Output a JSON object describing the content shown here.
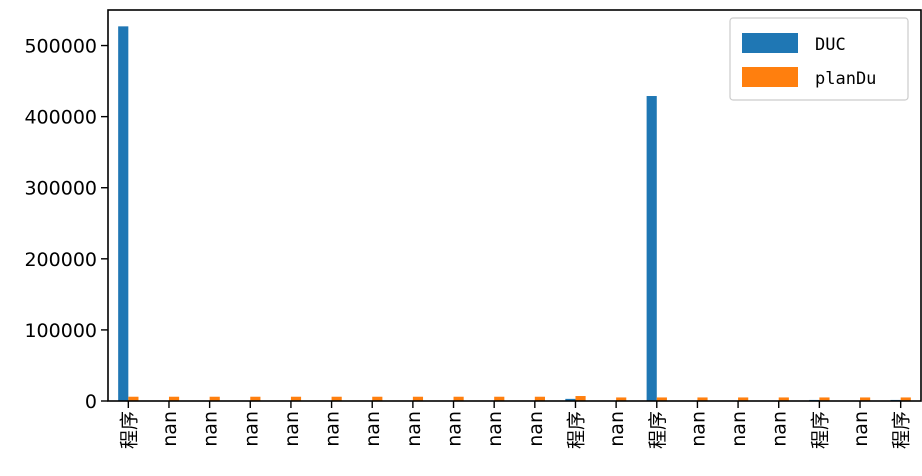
{
  "chart_data": {
    "type": "bar",
    "title": "",
    "xlabel": "",
    "ylabel": "",
    "ylim": [
      0,
      550000
    ],
    "yticks": [
      0,
      100000,
      200000,
      300000,
      400000,
      500000
    ],
    "ytick_labels": [
      "0",
      "100000",
      "200000",
      "300000",
      "400000",
      "500000"
    ],
    "categories": [
      "程序",
      "nan",
      "nan",
      "nan",
      "nan",
      "nan",
      "nan",
      "nan",
      "nan",
      "nan",
      "nan",
      "程序",
      "nan",
      "程序",
      "nan",
      "nan",
      "nan",
      "程序",
      "nan",
      "程序"
    ],
    "series": [
      {
        "name": "DUC",
        "color": "#1f77b4",
        "values": [
          527000,
          0,
          0,
          0,
          0,
          0,
          0,
          0,
          0,
          0,
          0,
          3000,
          0,
          429000,
          0,
          0,
          0,
          1500,
          0,
          1500
        ]
      },
      {
        "name": "planDu",
        "color": "#ff7f0e",
        "values": [
          6000,
          6000,
          6000,
          6000,
          6000,
          6000,
          6000,
          6000,
          6000,
          6000,
          6000,
          7000,
          5000,
          5000,
          5000,
          5000,
          5000,
          5000,
          5000,
          5000
        ]
      }
    ],
    "legend_position": "top-right",
    "grid": false
  }
}
